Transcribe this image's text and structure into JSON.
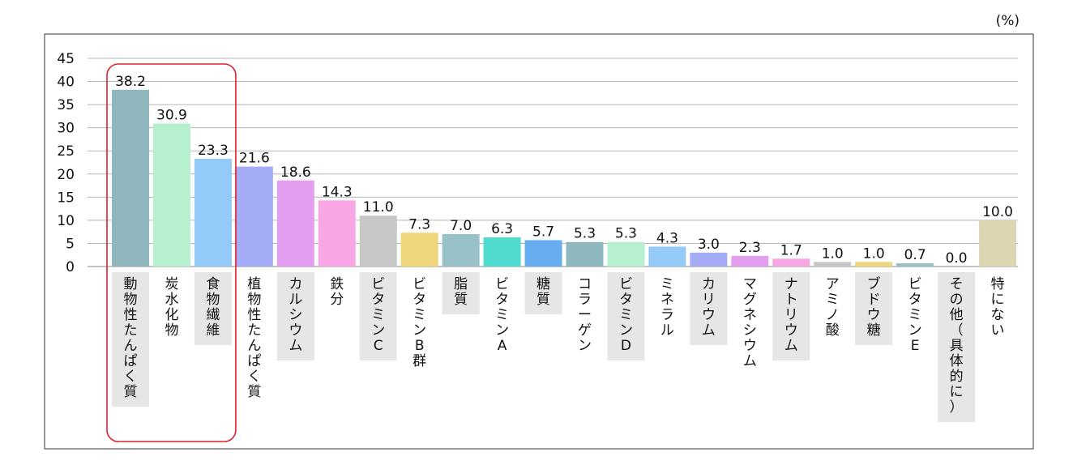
{
  "chart_data": {
    "type": "bar",
    "unit": "(%)",
    "ylim": [
      0,
      45
    ],
    "yticks": [
      0,
      5,
      10,
      15,
      20,
      25,
      30,
      35,
      40,
      45
    ],
    "grid": true,
    "categories": [
      "動物性たんぱく質",
      "炭水化物",
      "食物繊維",
      "植物性たんぱく質",
      "カルシウム",
      "鉄分",
      "ビタミンC",
      "ビタミンB群",
      "脂質",
      "ビタミンA",
      "糖質",
      "コラーゲン",
      "ビタミンD",
      "ミネラル",
      "カリウム",
      "マグネシウム",
      "ナトリウム",
      "アミノ酸",
      "ブドウ糖",
      "ビタミンE",
      "その他（具体的に）",
      "特にない"
    ],
    "values": [
      38.2,
      30.9,
      23.3,
      21.6,
      18.6,
      14.3,
      11.0,
      7.3,
      7.0,
      6.3,
      5.7,
      5.3,
      5.3,
      4.3,
      3.0,
      2.3,
      1.7,
      1.0,
      1.0,
      0.7,
      0.0,
      10.0
    ],
    "value_labels": [
      "38.2",
      "30.9",
      "23.3",
      "21.6",
      "18.6",
      "14.3",
      "11.0",
      "7.3",
      "7.0",
      "6.3",
      "5.7",
      "5.3",
      "5.3",
      "4.3",
      "3.0",
      "2.3",
      "1.7",
      "1.0",
      "1.0",
      "0.7",
      "0.0",
      "10.0"
    ],
    "colors": [
      "#8fb5bd",
      "#b6f0cf",
      "#93caf7",
      "#a4acf7",
      "#e49ef0",
      "#f8a7e4",
      "#c5c8c6",
      "#efd67a",
      "#98c1c8",
      "#4fdccf",
      "#66aef0",
      "#8fb8be",
      "#b6f0cf",
      "#93caf7",
      "#a4acf7",
      "#e49ef0",
      "#f8a7e4",
      "#c5c8c6",
      "#efd67a",
      "#98c1c8",
      "#4fdccf",
      "#ddd6b3"
    ],
    "highlight": {
      "from": 0,
      "to": 2,
      "color": "#e0202a"
    }
  }
}
